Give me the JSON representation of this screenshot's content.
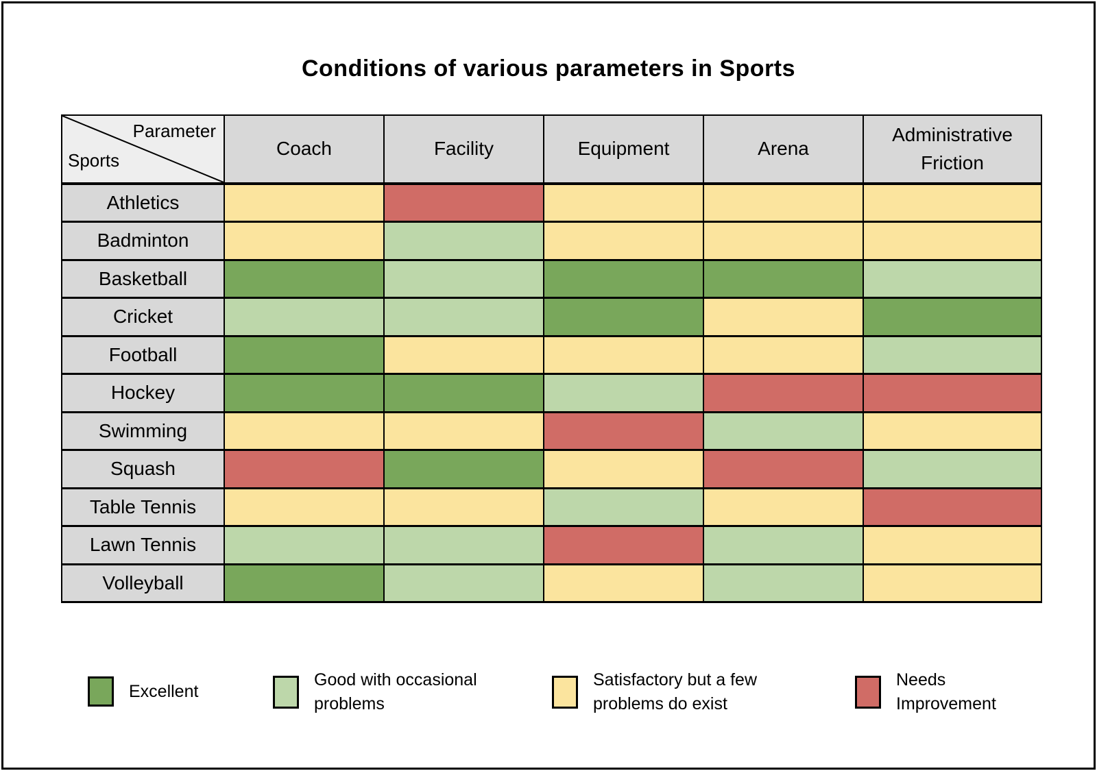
{
  "title": "Conditions of various parameters in Sports",
  "chart_data": {
    "type": "heatmap",
    "title": "Conditions of various parameters in Sports",
    "corner": {
      "top_label": "Parameter",
      "bottom_label": "Sports"
    },
    "columns": [
      "Coach",
      "Facility",
      "Equipment",
      "Arena",
      "Administrative Friction"
    ],
    "rows": [
      {
        "sport": "Athletics",
        "values": [
          "satisfactory",
          "needs_improvement",
          "satisfactory",
          "satisfactory",
          "satisfactory"
        ]
      },
      {
        "sport": "Badminton",
        "values": [
          "satisfactory",
          "good",
          "satisfactory",
          "satisfactory",
          "satisfactory"
        ]
      },
      {
        "sport": "Basketball",
        "values": [
          "excellent",
          "good",
          "excellent",
          "excellent",
          "good"
        ]
      },
      {
        "sport": "Cricket",
        "values": [
          "good",
          "good",
          "excellent",
          "satisfactory",
          "excellent"
        ]
      },
      {
        "sport": "Football",
        "values": [
          "excellent",
          "satisfactory",
          "satisfactory",
          "satisfactory",
          "good"
        ]
      },
      {
        "sport": "Hockey",
        "values": [
          "excellent",
          "excellent",
          "good",
          "needs_improvement",
          "needs_improvement"
        ]
      },
      {
        "sport": "Swimming",
        "values": [
          "satisfactory",
          "satisfactory",
          "needs_improvement",
          "good",
          "satisfactory"
        ]
      },
      {
        "sport": "Squash",
        "values": [
          "needs_improvement",
          "excellent",
          "satisfactory",
          "needs_improvement",
          "good"
        ]
      },
      {
        "sport": "Table Tennis",
        "values": [
          "satisfactory",
          "satisfactory",
          "good",
          "satisfactory",
          "needs_improvement"
        ]
      },
      {
        "sport": "Lawn Tennis",
        "values": [
          "good",
          "good",
          "needs_improvement",
          "good",
          "satisfactory"
        ]
      },
      {
        "sport": "Volleyball",
        "values": [
          "excellent",
          "good",
          "satisfactory",
          "good",
          "satisfactory"
        ]
      }
    ],
    "legend": [
      {
        "key": "excellent",
        "label": "Excellent"
      },
      {
        "key": "good",
        "label": "Good with occasional problems"
      },
      {
        "key": "satisfactory",
        "label": "Satisfactory but a few problems do exist"
      },
      {
        "key": "needs_improvement",
        "label": "Needs Improvement"
      }
    ],
    "colors": {
      "excellent": "#79a75b",
      "good": "#bdd7aa",
      "satisfactory": "#fbe49e",
      "needs_improvement": "#d06c66",
      "header_bg": "#d8d8d8",
      "corner_bg": "#eeeeee",
      "border": "#000000",
      "page_bg": "#ffffff"
    }
  }
}
